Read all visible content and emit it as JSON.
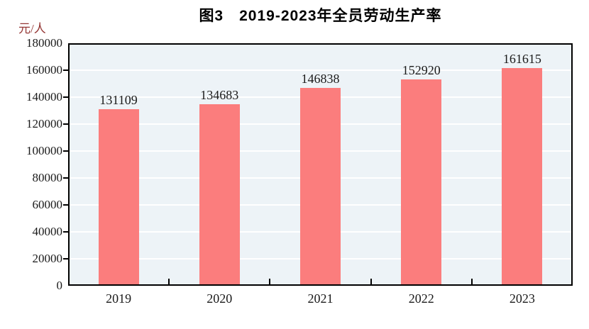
{
  "title": "图3　2019-2023年全员劳动生产率",
  "y_unit_label": "元/人",
  "chart_data": {
    "type": "bar",
    "title": "图3　2019-2023年全员劳动生产率",
    "categories": [
      "2019",
      "2020",
      "2021",
      "2022",
      "2023"
    ],
    "values": [
      131109,
      134683,
      146838,
      152920,
      161615
    ],
    "data_labels_shown": true,
    "xlabel": "",
    "ylabel": "元/人",
    "ylim": [
      0,
      180000
    ],
    "ytick_step": 20000,
    "yticks": [
      0,
      20000,
      40000,
      60000,
      80000,
      100000,
      120000,
      140000,
      160000,
      180000
    ],
    "grid": true,
    "legend": "none",
    "colors": {
      "bar_fill": "#FB7D7D",
      "plot_background": "#EDF3F7",
      "gridline": "#FFFFFF",
      "axis_border": "#000000",
      "unit_label": "#943634",
      "text": "#1A1A1A"
    }
  }
}
